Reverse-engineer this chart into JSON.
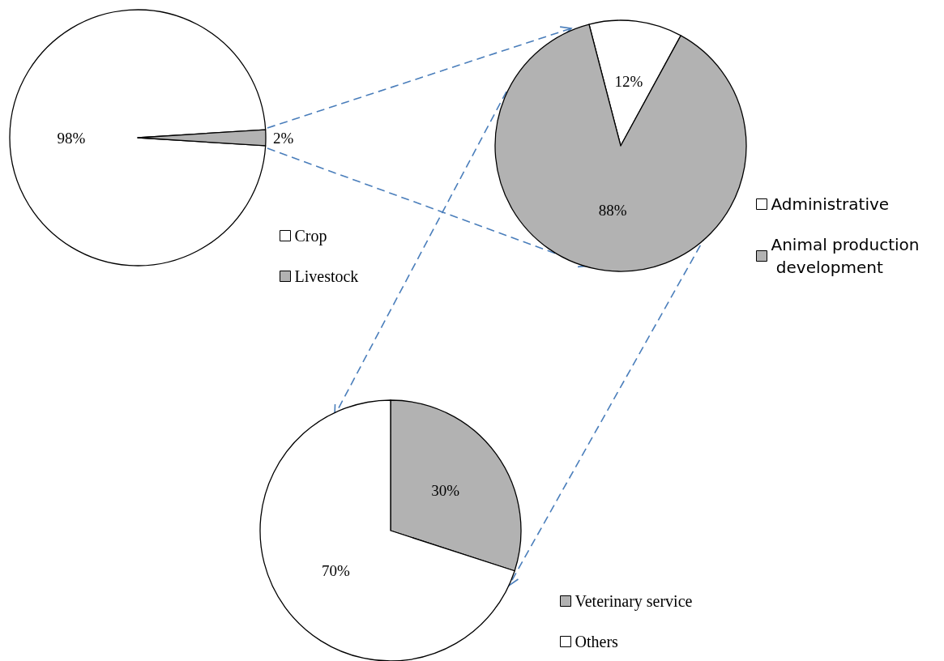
{
  "chart_data": [
    {
      "type": "pie",
      "categories": [
        "Crop",
        "Livestock"
      ],
      "values": [
        98,
        2
      ],
      "colors": [
        "#ffffff",
        "#b2b2b2"
      ],
      "value_labels": [
        "98%",
        "2%"
      ],
      "legend": "bottom right"
    },
    {
      "type": "pie",
      "categories": [
        "Administrative",
        "Animal production development"
      ],
      "values": [
        12,
        88
      ],
      "colors": [
        "#ffffff",
        "#b2b2b2"
      ],
      "value_labels": [
        "12%",
        "88%"
      ],
      "legend": "right"
    },
    {
      "type": "pie",
      "categories": [
        "Veterinary service",
        "Others"
      ],
      "values": [
        30,
        70
      ],
      "colors": [
        "#b2b2b2",
        "#ffffff"
      ],
      "value_labels": [
        "30%",
        "70%"
      ],
      "legend": "bottom right"
    }
  ]
}
